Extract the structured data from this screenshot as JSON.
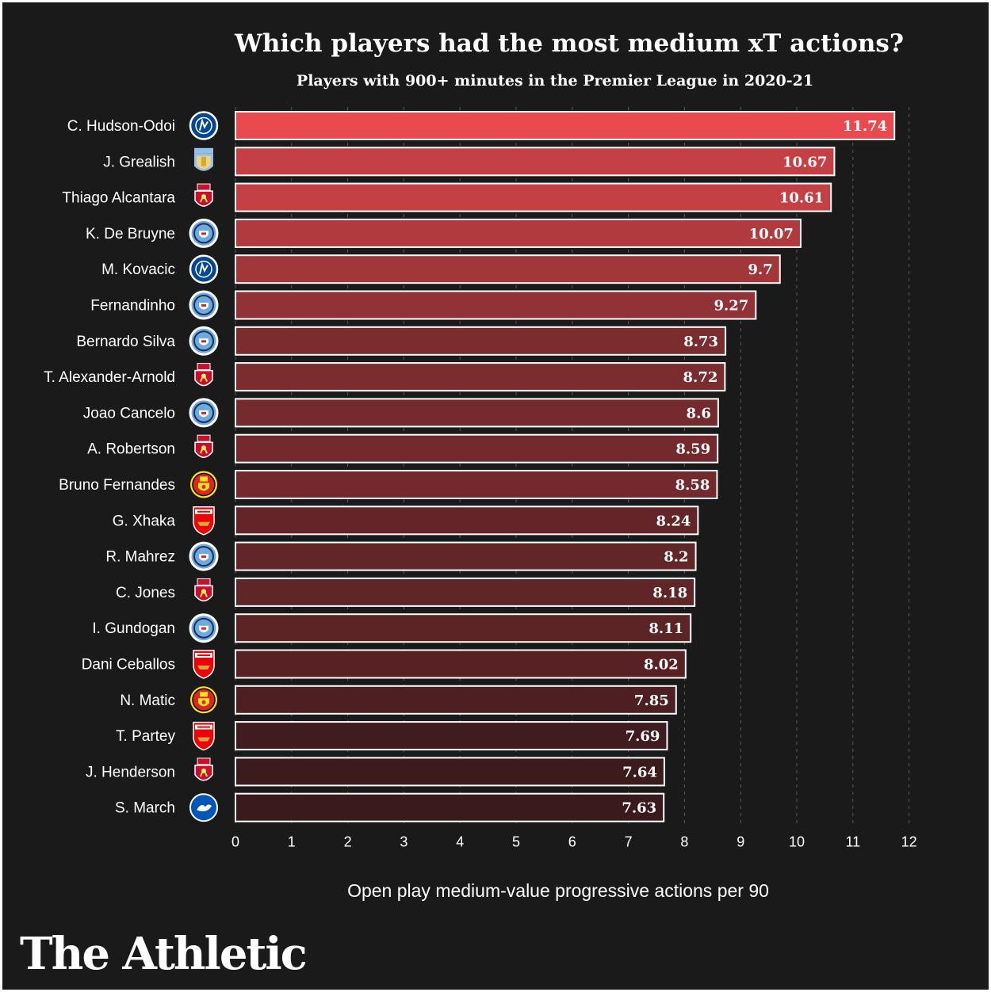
{
  "brand": "The Athletic",
  "colors": {
    "background": "#1a1a1a",
    "bar_high": "#e84a4f",
    "bar_low": "#3a1a1c",
    "bar_border": "#ffffff"
  },
  "chart_data": {
    "type": "bar",
    "orientation": "horizontal",
    "title": "Which players had the most medium xT actions?",
    "subtitle": "Players with 900+ minutes in the Premier League in 2020-21",
    "xlabel": "Open play medium-value progressive actions per 90",
    "xlim": [
      0,
      12
    ],
    "xticks": [
      0,
      1,
      2,
      3,
      4,
      5,
      6,
      7,
      8,
      9,
      10,
      11,
      12
    ],
    "grid": "vertical-dashed",
    "bars": [
      {
        "player": "C. Hudson-Odoi",
        "club": "Chelsea",
        "crest_icon": "chelsea-crest-icon",
        "value": 11.74,
        "label": "11.74"
      },
      {
        "player": "J. Grealish",
        "club": "Aston Villa",
        "crest_icon": "aston-villa-crest-icon",
        "value": 10.67,
        "label": "10.67"
      },
      {
        "player": "Thiago Alcantara",
        "club": "Liverpool",
        "crest_icon": "liverpool-crest-icon",
        "value": 10.61,
        "label": "10.61"
      },
      {
        "player": "K. De Bruyne",
        "club": "Manchester City",
        "crest_icon": "man-city-crest-icon",
        "value": 10.07,
        "label": "10.07"
      },
      {
        "player": "M. Kovacic",
        "club": "Chelsea",
        "crest_icon": "chelsea-crest-icon",
        "value": 9.7,
        "label": "9.7"
      },
      {
        "player": "Fernandinho",
        "club": "Manchester City",
        "crest_icon": "man-city-crest-icon",
        "value": 9.27,
        "label": "9.27"
      },
      {
        "player": "Bernardo Silva",
        "club": "Manchester City",
        "crest_icon": "man-city-crest-icon",
        "value": 8.73,
        "label": "8.73"
      },
      {
        "player": "T. Alexander-Arnold",
        "club": "Liverpool",
        "crest_icon": "liverpool-crest-icon",
        "value": 8.72,
        "label": "8.72"
      },
      {
        "player": "Joao Cancelo",
        "club": "Manchester City",
        "crest_icon": "man-city-crest-icon",
        "value": 8.6,
        "label": "8.6"
      },
      {
        "player": "A. Robertson",
        "club": "Liverpool",
        "crest_icon": "liverpool-crest-icon",
        "value": 8.59,
        "label": "8.59"
      },
      {
        "player": "Bruno Fernandes",
        "club": "Manchester United",
        "crest_icon": "man-united-crest-icon",
        "value": 8.58,
        "label": "8.58"
      },
      {
        "player": "G. Xhaka",
        "club": "Arsenal",
        "crest_icon": "arsenal-crest-icon",
        "value": 8.24,
        "label": "8.24"
      },
      {
        "player": "R. Mahrez",
        "club": "Manchester City",
        "crest_icon": "man-city-crest-icon",
        "value": 8.2,
        "label": "8.2"
      },
      {
        "player": "C. Jones",
        "club": "Liverpool",
        "crest_icon": "liverpool-crest-icon",
        "value": 8.18,
        "label": "8.18"
      },
      {
        "player": "I. Gundogan",
        "club": "Manchester City",
        "crest_icon": "man-city-crest-icon",
        "value": 8.11,
        "label": "8.11"
      },
      {
        "player": "Dani Ceballos",
        "club": "Arsenal",
        "crest_icon": "arsenal-crest-icon",
        "value": 8.02,
        "label": "8.02"
      },
      {
        "player": "N. Matic",
        "club": "Manchester United",
        "crest_icon": "man-united-crest-icon",
        "value": 7.85,
        "label": "7.85"
      },
      {
        "player": "T. Partey",
        "club": "Arsenal",
        "crest_icon": "arsenal-crest-icon",
        "value": 7.69,
        "label": "7.69"
      },
      {
        "player": "J. Henderson",
        "club": "Liverpool",
        "crest_icon": "liverpool-crest-icon",
        "value": 7.64,
        "label": "7.64"
      },
      {
        "player": "S. March",
        "club": "Brighton",
        "crest_icon": "brighton-crest-icon",
        "value": 7.63,
        "label": "7.63"
      }
    ]
  }
}
